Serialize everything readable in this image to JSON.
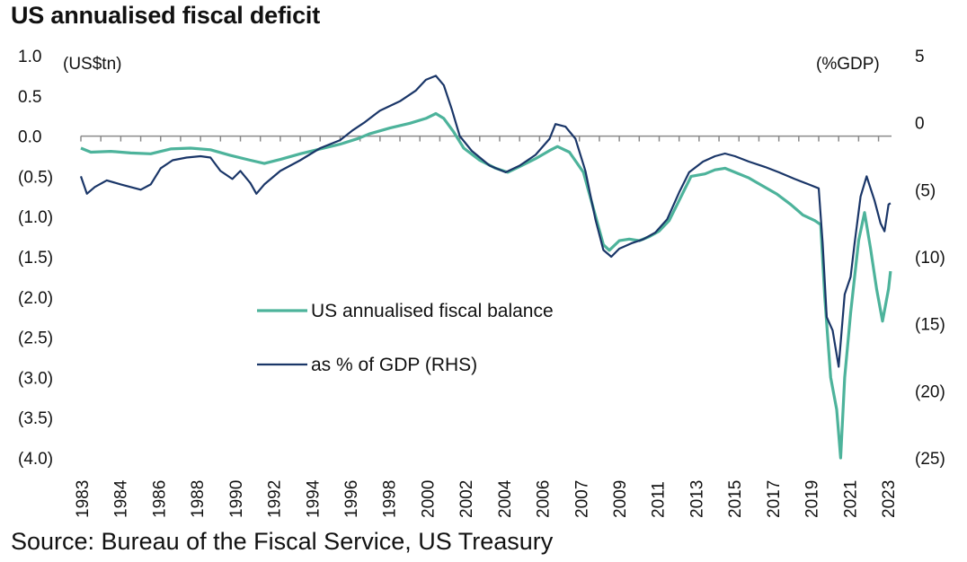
{
  "title": "US annualised fiscal deficit",
  "source": "Source: Bureau of the Fiscal Service, US Treasury",
  "chart_data": {
    "type": "line",
    "left_unit": "(US$tn)",
    "right_unit": "(%GDP)",
    "ylim_left": [
      -4.0,
      1.0
    ],
    "ylim_right": [
      -25,
      5
    ],
    "left_ticks": [
      "1.0",
      "0.5",
      "0.0",
      "(0.5)",
      "(1.0)",
      "(1.5)",
      "(2.0)",
      "(2.5)",
      "(3.0)",
      "(3.5)",
      "(4.0)"
    ],
    "right_ticks": [
      "5",
      "0",
      "(5)",
      "(10)",
      "(15)",
      "(20)",
      "(25)"
    ],
    "x_tick_labels": [
      "1983",
      "1984",
      "1986",
      "1988",
      "1990",
      "1992",
      "1994",
      "1996",
      "1998",
      "2000",
      "2002",
      "2004",
      "2006",
      "2007",
      "2009",
      "2011",
      "2013",
      "2015",
      "2017",
      "2019",
      "2021",
      "2023"
    ],
    "grid": false,
    "legend_position": "center-left",
    "series": [
      {
        "name": "US annualised fiscal balance",
        "axis": "left",
        "color": "#4db39b",
        "points": [
          [
            1983.0,
            -0.15
          ],
          [
            1983.5,
            -0.2
          ],
          [
            1984.5,
            -0.19
          ],
          [
            1985.5,
            -0.21
          ],
          [
            1986.5,
            -0.22
          ],
          [
            1987.5,
            -0.16
          ],
          [
            1988.5,
            -0.15
          ],
          [
            1989.5,
            -0.17
          ],
          [
            1990.5,
            -0.24
          ],
          [
            1991.5,
            -0.3
          ],
          [
            1992.2,
            -0.34
          ],
          [
            1993.0,
            -0.29
          ],
          [
            1994.0,
            -0.22
          ],
          [
            1995.0,
            -0.16
          ],
          [
            1996.0,
            -0.1
          ],
          [
            1996.9,
            -0.03
          ],
          [
            1997.5,
            0.03
          ],
          [
            1998.5,
            0.1
          ],
          [
            1999.5,
            0.16
          ],
          [
            2000.3,
            0.22
          ],
          [
            2000.8,
            0.28
          ],
          [
            2001.2,
            0.22
          ],
          [
            2001.7,
            0.05
          ],
          [
            2002.2,
            -0.15
          ],
          [
            2003.0,
            -0.3
          ],
          [
            2003.8,
            -0.4
          ],
          [
            2004.4,
            -0.45
          ],
          [
            2005.0,
            -0.38
          ],
          [
            2005.8,
            -0.28
          ],
          [
            2006.5,
            -0.18
          ],
          [
            2006.9,
            -0.13
          ],
          [
            2007.5,
            -0.2
          ],
          [
            2008.2,
            -0.45
          ],
          [
            2008.7,
            -0.9
          ],
          [
            2009.2,
            -1.35
          ],
          [
            2009.5,
            -1.42
          ],
          [
            2010.0,
            -1.3
          ],
          [
            2010.5,
            -1.28
          ],
          [
            2011.0,
            -1.3
          ],
          [
            2011.5,
            -1.25
          ],
          [
            2012.0,
            -1.18
          ],
          [
            2012.5,
            -1.05
          ],
          [
            2013.0,
            -0.8
          ],
          [
            2013.6,
            -0.5
          ],
          [
            2014.3,
            -0.47
          ],
          [
            2014.8,
            -0.42
          ],
          [
            2015.3,
            -0.4
          ],
          [
            2015.8,
            -0.45
          ],
          [
            2016.5,
            -0.52
          ],
          [
            2017.2,
            -0.62
          ],
          [
            2017.9,
            -0.72
          ],
          [
            2018.6,
            -0.85
          ],
          [
            2019.2,
            -0.98
          ],
          [
            2019.8,
            -1.05
          ],
          [
            2020.1,
            -1.1
          ],
          [
            2020.3,
            -2.0
          ],
          [
            2020.6,
            -3.0
          ],
          [
            2020.9,
            -3.4
          ],
          [
            2021.1,
            -4.0
          ],
          [
            2021.3,
            -3.0
          ],
          [
            2021.6,
            -2.2
          ],
          [
            2022.0,
            -1.3
          ],
          [
            2022.3,
            -0.95
          ],
          [
            2022.6,
            -1.4
          ],
          [
            2022.9,
            -1.9
          ],
          [
            2023.2,
            -2.3
          ],
          [
            2023.5,
            -1.9
          ],
          [
            2023.6,
            -1.68
          ]
        ]
      },
      {
        "name": "as % of GDP (RHS)",
        "axis": "right",
        "color": "#1a3668",
        "points": [
          [
            1983.0,
            -4.0
          ],
          [
            1983.3,
            -5.3
          ],
          [
            1983.7,
            -4.8
          ],
          [
            1984.3,
            -4.3
          ],
          [
            1985.0,
            -4.6
          ],
          [
            1986.0,
            -5.0
          ],
          [
            1986.5,
            -4.6
          ],
          [
            1987.0,
            -3.4
          ],
          [
            1987.6,
            -2.8
          ],
          [
            1988.3,
            -2.6
          ],
          [
            1989.0,
            -2.5
          ],
          [
            1989.5,
            -2.6
          ],
          [
            1990.0,
            -3.6
          ],
          [
            1990.6,
            -4.2
          ],
          [
            1991.0,
            -3.6
          ],
          [
            1991.5,
            -4.5
          ],
          [
            1991.8,
            -5.3
          ],
          [
            1992.2,
            -4.6
          ],
          [
            1993.0,
            -3.6
          ],
          [
            1994.0,
            -2.8
          ],
          [
            1995.0,
            -1.9
          ],
          [
            1996.0,
            -1.3
          ],
          [
            1996.6,
            -0.6
          ],
          [
            1997.2,
            0.0
          ],
          [
            1998.0,
            0.9
          ],
          [
            1999.0,
            1.6
          ],
          [
            1999.8,
            2.4
          ],
          [
            2000.3,
            3.2
          ],
          [
            2000.8,
            3.5
          ],
          [
            2001.2,
            2.8
          ],
          [
            2001.6,
            1.0
          ],
          [
            2002.0,
            -1.0
          ],
          [
            2002.6,
            -2.1
          ],
          [
            2003.5,
            -3.2
          ],
          [
            2004.3,
            -3.7
          ],
          [
            2005.0,
            -3.2
          ],
          [
            2005.8,
            -2.4
          ],
          [
            2006.5,
            -1.2
          ],
          [
            2006.8,
            -0.1
          ],
          [
            2007.3,
            -0.3
          ],
          [
            2007.8,
            -1.2
          ],
          [
            2008.3,
            -3.6
          ],
          [
            2008.8,
            -7.2
          ],
          [
            2009.2,
            -9.5
          ],
          [
            2009.6,
            -10.0
          ],
          [
            2010.0,
            -9.4
          ],
          [
            2010.6,
            -9.0
          ],
          [
            2011.2,
            -8.7
          ],
          [
            2011.8,
            -8.2
          ],
          [
            2012.4,
            -7.2
          ],
          [
            2013.0,
            -5.2
          ],
          [
            2013.5,
            -3.7
          ],
          [
            2014.2,
            -2.9
          ],
          [
            2014.8,
            -2.5
          ],
          [
            2015.3,
            -2.3
          ],
          [
            2015.8,
            -2.5
          ],
          [
            2016.5,
            -2.9
          ],
          [
            2017.3,
            -3.3
          ],
          [
            2018.0,
            -3.7
          ],
          [
            2018.8,
            -4.2
          ],
          [
            2019.5,
            -4.6
          ],
          [
            2020.0,
            -4.9
          ],
          [
            2020.2,
            -9.0
          ],
          [
            2020.4,
            -14.5
          ],
          [
            2020.7,
            -15.5
          ],
          [
            2021.0,
            -18.2
          ],
          [
            2021.3,
            -12.8
          ],
          [
            2021.6,
            -11.5
          ],
          [
            2021.8,
            -9.0
          ],
          [
            2022.1,
            -5.5
          ],
          [
            2022.4,
            -4.0
          ],
          [
            2022.8,
            -5.8
          ],
          [
            2023.1,
            -7.5
          ],
          [
            2023.3,
            -8.1
          ],
          [
            2023.5,
            -6.1
          ],
          [
            2023.6,
            -6.0
          ]
        ]
      }
    ]
  }
}
